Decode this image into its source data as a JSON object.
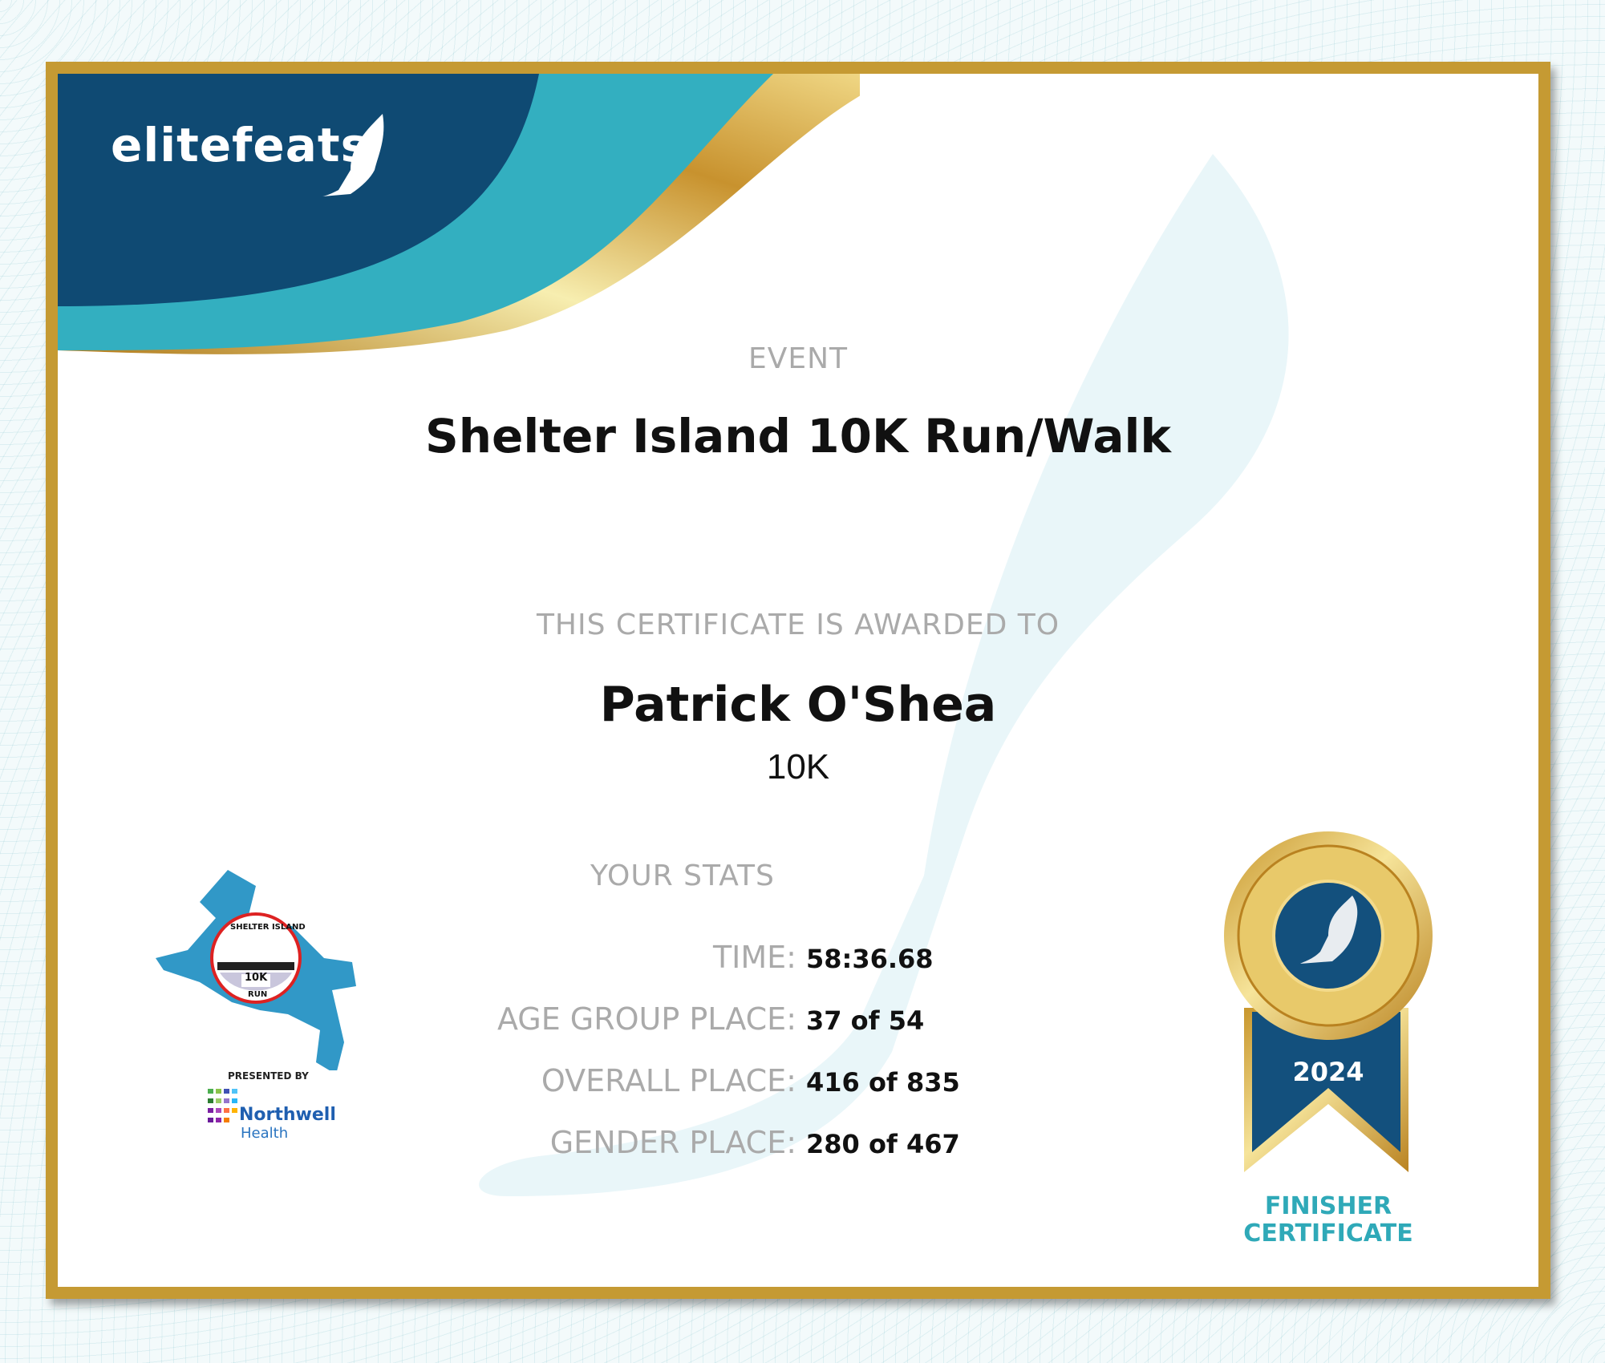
{
  "brand": {
    "logo_text": "elitefeats",
    "colors": {
      "navy": "#0f4a73",
      "teal": "#33afc0",
      "gold": "#c59a33"
    }
  },
  "event": {
    "label": "EVENT",
    "name": "Shelter Island 10K Run/Walk"
  },
  "award": {
    "label": "THIS CERTIFICATE IS AWARDED TO",
    "name": "Patrick O'Shea",
    "distance": "10K"
  },
  "stats": {
    "heading": "YOUR STATS",
    "rows": [
      {
        "label": "TIME:",
        "value": "58:36.68"
      },
      {
        "label": "AGE GROUP PLACE:",
        "value": "37 of 54"
      },
      {
        "label": "OVERALL PLACE:",
        "value": "416 of 835"
      },
      {
        "label": "GENDER PLACE:",
        "value": "280 of 467"
      }
    ]
  },
  "sponsor": {
    "race_logo_text": "SHELTER ISLAND",
    "race_logo_sub": "10K",
    "race_logo_run": "RUN",
    "presented_by": "PRESENTED BY",
    "sponsor_name": "Northwell",
    "sponsor_sub": "Health"
  },
  "medal": {
    "year": "2024",
    "caption_line1": "FINISHER",
    "caption_line2": "CERTIFICATE"
  }
}
